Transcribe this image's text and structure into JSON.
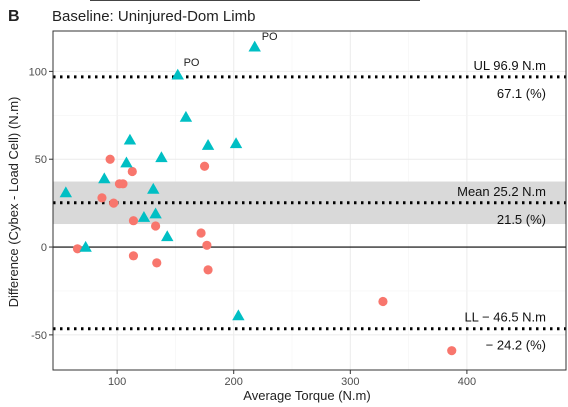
{
  "panel": {
    "letter": "B",
    "title": "Baseline: Uninjured-Dom Limb"
  },
  "chart_data": {
    "type": "scatter",
    "title": "Baseline: Uninjured-Dom Limb",
    "xlabel": "Average Torque (N.m)",
    "ylabel": "Difference (Cybex - Load Cell) (N.m)",
    "xlim": [
      45,
      485
    ],
    "ylim": [
      -70,
      123
    ],
    "x_ticks": [
      "100",
      "200",
      "300",
      "400"
    ],
    "x_tick_values": [
      100,
      200,
      300,
      400
    ],
    "y_ticks": [
      "-50",
      "0",
      "50",
      "100"
    ],
    "y_tick_values": [
      -50,
      0,
      50,
      100
    ],
    "grid": true,
    "confidence_band": {
      "lower": 13.1,
      "upper": 37.3
    },
    "reference_lines": [
      {
        "key": "ul",
        "value": 96.9,
        "style": "dotted",
        "line1": "UL  96.9 N.m",
        "line2": "67.1 (%)"
      },
      {
        "key": "mean",
        "value": 25.2,
        "style": "dotted",
        "line1": "Mean  25.2 N.m",
        "line2": "21.5 (%)"
      },
      {
        "key": "ll",
        "value": -46.5,
        "style": "dotted",
        "line1": "LL  − 46.5 N.m",
        "line2": "− 24.2 (%)"
      }
    ],
    "zero_line": 0,
    "series": [
      {
        "marker": "circle",
        "color": "#F8766D",
        "x": [
          66,
          87,
          94,
          97,
          102,
          105,
          113,
          114,
          114,
          133,
          134,
          172,
          175,
          177,
          178,
          328,
          387
        ],
        "y": [
          -1,
          28,
          50,
          25,
          36,
          36,
          43,
          15,
          -5,
          12,
          -9,
          8,
          46,
          1,
          -13,
          -31,
          -59
        ]
      },
      {
        "marker": "triangle",
        "color": "#00BFC4",
        "x": [
          56,
          73,
          89,
          108,
          111,
          123,
          131,
          133,
          138,
          143,
          152,
          159,
          178,
          202,
          204,
          218
        ],
        "y": [
          31,
          0,
          39,
          48,
          61,
          17,
          33,
          19,
          51,
          6,
          98,
          74,
          58,
          59,
          -39,
          114
        ]
      }
    ],
    "annotations": [
      {
        "text": "PO",
        "x": 157,
        "y": 103,
        "color": "#E69F00"
      },
      {
        "text": "PO",
        "x": 224,
        "y": 118,
        "color": "#E69F00"
      }
    ]
  }
}
